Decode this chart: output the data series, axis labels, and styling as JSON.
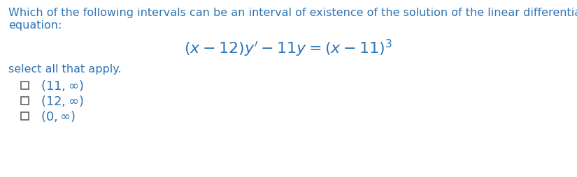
{
  "background_color": "#ffffff",
  "text_color": "#2e74b5",
  "question_line1": "Which of the following intervals can be an interval of existence of the solution of the linear differential",
  "question_line2": "equation:",
  "select_text": "select all that apply.",
  "text_fontsize": 11.5,
  "eq_fontsize": 14,
  "option_fontsize": 13,
  "checkbox_color": "#555555",
  "option_labels": [
    "$(11, \\infty)$",
    "$(12, \\infty)$",
    "$(0, \\infty)$"
  ]
}
